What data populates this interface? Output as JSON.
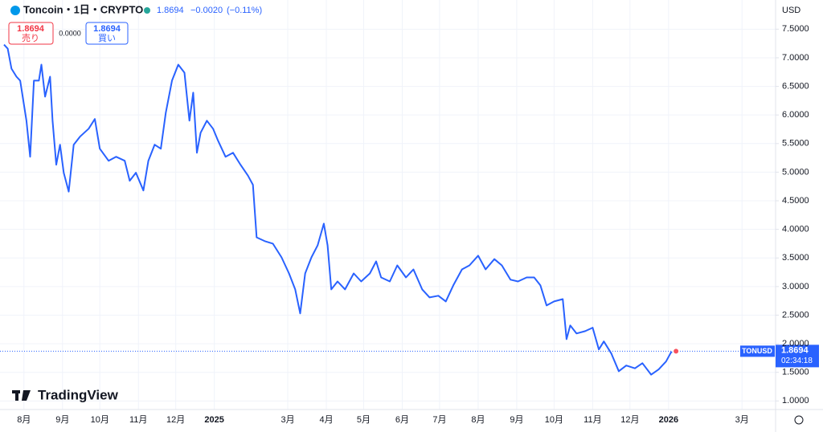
{
  "header": {
    "symbol": "Toncoin・1日・CRYPTO",
    "price": "1.8694",
    "change": "−0.0020",
    "change_pct": "(−0.11%)",
    "currency": "USD"
  },
  "order": {
    "sell_price": "1.8694",
    "sell_label": "売り",
    "spread": "0.0000",
    "buy_price": "1.8694",
    "buy_label": "買い"
  },
  "logo": "TradingView",
  "chart_data": {
    "type": "line",
    "last_label": "1.8694",
    "countdown": "02:34:18",
    "x": [
      -16,
      -13,
      -10,
      -6,
      -3,
      2,
      5,
      8,
      12,
      14,
      17,
      21,
      23,
      26,
      29,
      32,
      36,
      40,
      45,
      52,
      57,
      61,
      68,
      74,
      81,
      85,
      90,
      96,
      100,
      105,
      110,
      114,
      119,
      124,
      129,
      133,
      136,
      139,
      142,
      147,
      152,
      156,
      162,
      168,
      174,
      180,
      184,
      187,
      194,
      200,
      207,
      213,
      218,
      222,
      226,
      231,
      236,
      241,
      244,
      247,
      252,
      258,
      265,
      271,
      278,
      283,
      287,
      294,
      300,
      307,
      313,
      320,
      326,
      333,
      339,
      345,
      352,
      358,
      365,
      371,
      378,
      384,
      391,
      397,
      404,
      410,
      415,
      420,
      426,
      433,
      436,
      439,
      444,
      451,
      457,
      462,
      466,
      472,
      478,
      484,
      491,
      497,
      504,
      510,
      516,
      520,
      524
    ],
    "series": [
      {
        "name": "TONUSD",
        "color": "#2962ff",
        "values": [
          7.23,
          7.16,
          6.81,
          6.67,
          6.6,
          5.9,
          5.27,
          6.6,
          6.6,
          6.88,
          6.32,
          6.67,
          5.9,
          5.13,
          5.48,
          4.99,
          4.66,
          5.48,
          5.62,
          5.76,
          5.93,
          5.41,
          5.2,
          5.27,
          5.2,
          4.85,
          4.99,
          4.68,
          5.2,
          5.48,
          5.41,
          6.04,
          6.6,
          6.88,
          6.74,
          5.9,
          6.39,
          5.34,
          5.69,
          5.9,
          5.76,
          5.55,
          5.27,
          5.34,
          5.13,
          4.94,
          4.78,
          3.86,
          3.79,
          3.75,
          3.51,
          3.23,
          2.95,
          2.53,
          3.23,
          3.51,
          3.72,
          4.1,
          3.72,
          2.95,
          3.09,
          2.95,
          3.23,
          3.09,
          3.23,
          3.44,
          3.16,
          3.09,
          3.37,
          3.16,
          3.3,
          2.95,
          2.81,
          2.84,
          2.74,
          3.02,
          3.3,
          3.37,
          3.54,
          3.3,
          3.48,
          3.37,
          3.12,
          3.09,
          3.16,
          3.16,
          3.02,
          2.67,
          2.74,
          2.78,
          2.08,
          2.32,
          2.18,
          2.22,
          2.28,
          1.9,
          2.04,
          1.83,
          1.52,
          1.62,
          1.57,
          1.66,
          1.46,
          1.55,
          1.69,
          1.85,
          1.8694
        ]
      }
    ],
    "xlim": [
      -16,
      604
    ],
    "xticks": [
      {
        "value": 0,
        "label": "8月"
      },
      {
        "value": 31,
        "label": "9月"
      },
      {
        "value": 61,
        "label": "10月"
      },
      {
        "value": 92,
        "label": "11月"
      },
      {
        "value": 122,
        "label": "12月"
      },
      {
        "value": 153,
        "label": "2025"
      },
      {
        "value": 212,
        "label": "3月"
      },
      {
        "value": 243,
        "label": "4月"
      },
      {
        "value": 273,
        "label": "5月"
      },
      {
        "value": 304,
        "label": "6月"
      },
      {
        "value": 334,
        "label": "7月"
      },
      {
        "value": 365,
        "label": "8月"
      },
      {
        "value": 396,
        "label": "9月"
      },
      {
        "value": 426,
        "label": "10月"
      },
      {
        "value": 457,
        "label": "11月"
      },
      {
        "value": 487,
        "label": "12月"
      },
      {
        "value": 518,
        "label": "2026"
      },
      {
        "value": 577,
        "label": "3月"
      }
    ],
    "ylim": [
      0.85,
      7.94
    ],
    "yticks": [
      {
        "value": 1,
        "label": "1.0000"
      },
      {
        "value": 1.5,
        "label": "1.5000"
      },
      {
        "value": 2,
        "label": "2.0000"
      },
      {
        "value": 2.5,
        "label": "2.5000"
      },
      {
        "value": 3,
        "label": "3.0000"
      },
      {
        "value": 3.5,
        "label": "3.5000"
      },
      {
        "value": 4,
        "label": "4.0000"
      },
      {
        "value": 4.5,
        "label": "4.5000"
      },
      {
        "value": 5,
        "label": "5.0000"
      },
      {
        "value": 5.5,
        "label": "5.5000"
      },
      {
        "value": 6,
        "label": "6.0000"
      },
      {
        "value": 6.5,
        "label": "6.5000"
      },
      {
        "value": 7,
        "label": "7.0000"
      },
      {
        "value": 7.5,
        "label": "7.5000"
      }
    ],
    "grid": true
  }
}
